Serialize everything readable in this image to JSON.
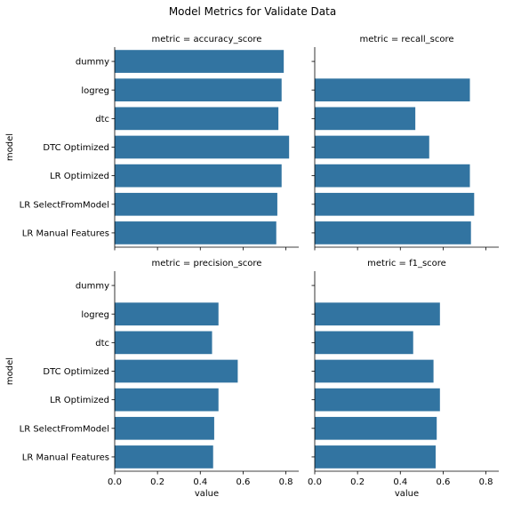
{
  "chart_data": {
    "type": "bar",
    "orientation": "horizontal",
    "title": "Model Metrics for Validate Data",
    "xlabel": "value",
    "ylabel": "model",
    "xlim": [
      0,
      0.86
    ],
    "xticks": [
      "0.0",
      "0.2",
      "0.4",
      "0.6",
      "0.8"
    ],
    "grid": false,
    "color": "#3274a1",
    "categories": [
      "dummy",
      "logreg",
      "dtc",
      "DTC Optimized",
      "LR Optimized",
      "LR SelectFromModel",
      "LR Manual Features"
    ],
    "facets": [
      {
        "title": "metric = accuracy_score",
        "values": [
          0.79,
          0.78,
          0.765,
          0.815,
          0.78,
          0.76,
          0.755
        ]
      },
      {
        "title": "metric = recall_score",
        "values": [
          0.0,
          0.725,
          0.47,
          0.535,
          0.725,
          0.745,
          0.73
        ]
      },
      {
        "title": "metric = precision_score",
        "values": [
          0.0,
          0.485,
          0.455,
          0.575,
          0.485,
          0.465,
          0.46
        ]
      },
      {
        "title": "metric = f1_score",
        "values": [
          0.0,
          0.585,
          0.46,
          0.555,
          0.585,
          0.57,
          0.565
        ]
      }
    ]
  }
}
